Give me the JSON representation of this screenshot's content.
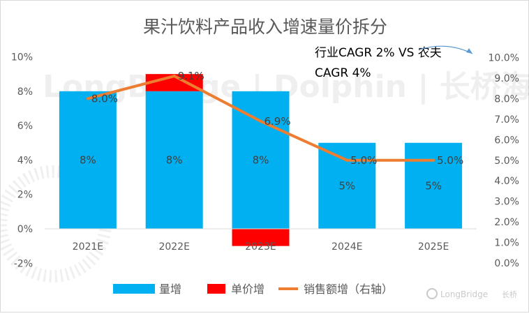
{
  "chart_data": {
    "type": "bar",
    "title": "果汁饮料产品收入增速量价拆分",
    "categories": [
      "2021E",
      "2022E",
      "2023E",
      "2024E",
      "2025E"
    ],
    "series": [
      {
        "name": "量增",
        "kind": "bar",
        "color": "#00b0f0",
        "values": [
          8,
          8,
          8,
          5,
          5
        ],
        "data_labels": [
          "8%",
          "8%",
          "8%",
          "5%",
          "5%"
        ]
      },
      {
        "name": "单价增",
        "kind": "bar",
        "color": "#ff0000",
        "values": [
          0,
          1,
          -1,
          0,
          0
        ]
      },
      {
        "name": "销售额增（右轴）",
        "kind": "line",
        "axis": "right",
        "color": "#ed7d31",
        "values": [
          8.0,
          9.1,
          6.9,
          5.0,
          5.0
        ],
        "data_labels": [
          "8.0%",
          "9.1%",
          "6.9%",
          "5.0%",
          "5.0%"
        ]
      }
    ],
    "left_axis": {
      "ylim": [
        -2,
        10
      ],
      "ticks": [
        -2,
        0,
        2,
        4,
        6,
        8,
        10
      ],
      "tick_labels": [
        "-2%",
        "0%",
        "2%",
        "4%",
        "6%",
        "8%",
        "10%"
      ]
    },
    "right_axis": {
      "ylim": [
        0,
        10
      ],
      "ticks": [
        0,
        1,
        2,
        3,
        4,
        5,
        6,
        7,
        8,
        9,
        10
      ],
      "tick_labels": [
        "0.0%",
        "1.0%",
        "2.0%",
        "3.0%",
        "4.0%",
        "5.0%",
        "6.0%",
        "7.0%",
        "8.0%",
        "9.0%",
        "10.0%"
      ]
    },
    "annotation": [
      "行业CAGR 2% VS 农夫",
      "CAGR 4%"
    ],
    "legend_position": "bottom",
    "grid": false
  },
  "watermark": {
    "text": "LongBridge | Dolphin | 长桥海豚投研"
  },
  "brand": {
    "name": "LongBridge",
    "suffix": "长桥"
  }
}
